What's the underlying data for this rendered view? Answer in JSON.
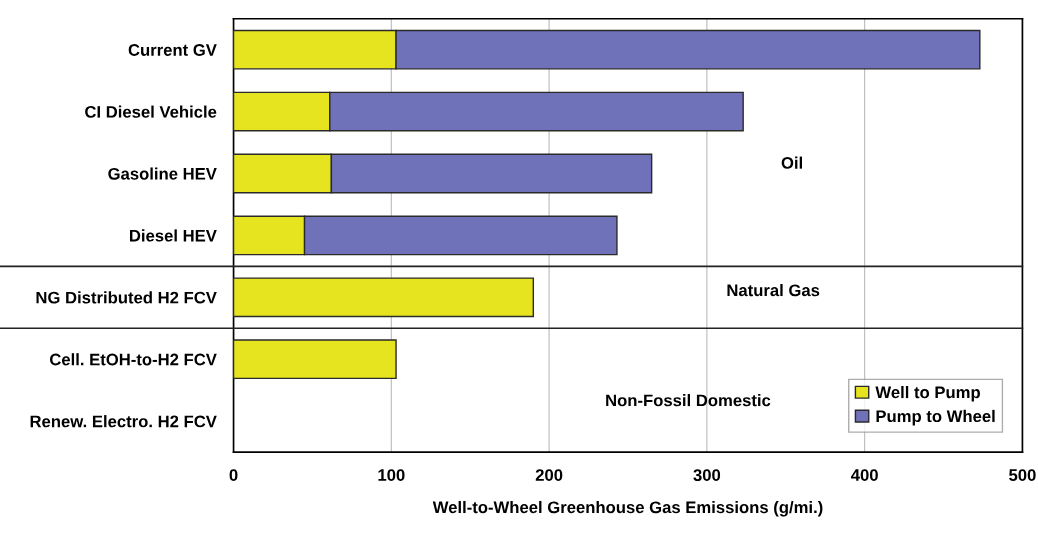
{
  "chart_data": {
    "type": "bar",
    "orientation": "horizontal",
    "stacked": true,
    "categories": [
      "Current GV",
      "CI Diesel Vehicle",
      "Gasoline HEV",
      "Diesel HEV",
      "NG Distributed H2 FCV",
      "Cell. EtOH-to-H2 FCV",
      "Renew. Electro. H2 FCV"
    ],
    "series": [
      {
        "name": "Well to Pump",
        "color": "#e6e41e",
        "values": [
          103,
          61,
          62,
          45,
          190,
          103,
          null
        ]
      },
      {
        "name": "Pump to Wheel",
        "color": "#6f71b9",
        "values": [
          370,
          262,
          203,
          198,
          null,
          null,
          null
        ]
      }
    ],
    "xlabel": "Well-to-Wheel Greenhouse Gas Emissions (g/mi.)",
    "xlim": [
      0,
      500
    ],
    "xticks": [
      0,
      100,
      200,
      300,
      400,
      500
    ],
    "grid": "x",
    "legend": "bottom right",
    "annotations": [
      "Oil",
      "Natural Gas",
      "Non-Fossil Domestic"
    ]
  }
}
